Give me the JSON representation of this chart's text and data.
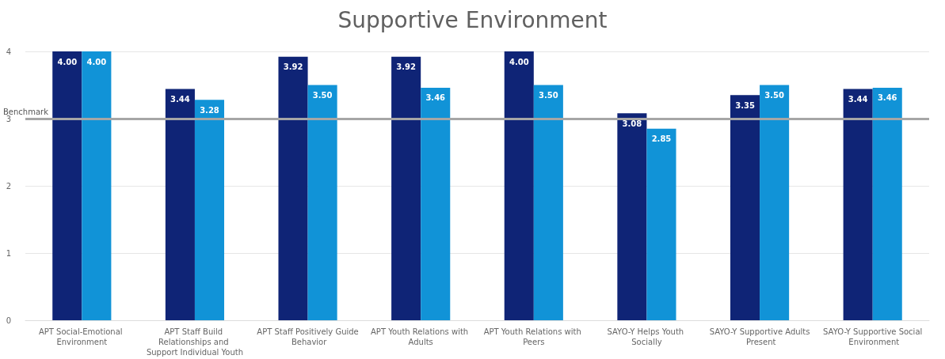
{
  "chart_data": {
    "type": "bar",
    "title": "Supportive Environment",
    "categories": [
      "APT Social-Emotional Environment",
      "APT Staff Build Relationships and Support Individual Youth",
      "APT Staff Positively Guide Behavior",
      "APT Youth Relations with Adults",
      "APT Youth Relations with Peers",
      "SAYO-Y Helps Youth Socially",
      "SAYO-Y Supportive Adults Present",
      "SAYO-Y Supportive Social Environment"
    ],
    "series": [
      {
        "color": "#0f2476",
        "values": [
          4.0,
          3.44,
          3.92,
          3.92,
          4.0,
          3.08,
          3.35,
          3.44
        ],
        "value_labels": [
          "4.00",
          "3.44",
          "3.92",
          "3.92",
          "4.00",
          "3.08",
          "3.35",
          "3.44"
        ]
      },
      {
        "color": "#1193d7",
        "values": [
          4.0,
          3.28,
          3.5,
          3.46,
          3.5,
          2.85,
          3.5,
          3.46
        ],
        "value_labels": [
          "4.00",
          "3.28",
          "3.50",
          "3.46",
          "3.50",
          "2.85",
          "3.50",
          "3.46"
        ]
      }
    ],
    "ylim": [
      0,
      4
    ],
    "yticks": [
      0,
      1,
      2,
      3,
      4
    ],
    "grid": "y",
    "ref_lines": [
      {
        "axis": "y",
        "value": 3,
        "label": "Benchmark",
        "color": "#a6a6a6"
      }
    ]
  }
}
